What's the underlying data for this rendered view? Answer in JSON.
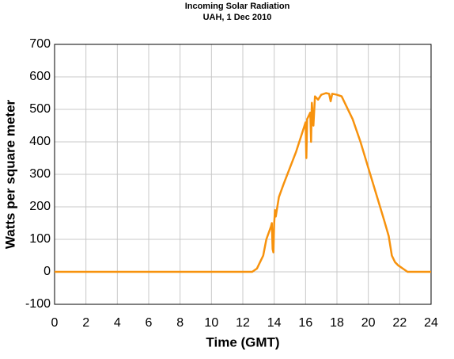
{
  "chart_data": {
    "type": "line",
    "title": "Incoming Solar Radiation",
    "subtitle": "UAH, 1 Dec 2010",
    "x_label": "Time (GMT)",
    "y_label": "Watts per square meter",
    "xlim": [
      0,
      24
    ],
    "xticks": [
      0,
      2,
      4,
      6,
      8,
      10,
      12,
      14,
      16,
      18,
      20,
      22,
      24
    ],
    "ylim": [
      -100,
      700
    ],
    "yticks": [
      -100,
      0,
      100,
      200,
      300,
      400,
      500,
      600,
      700
    ],
    "grid": true,
    "series": [
      {
        "name": "Incoming Solar Radiation",
        "color": "#f7920d",
        "x": [
          0,
          12.6,
          12.9,
          13.1,
          13.3,
          13.5,
          13.8,
          13.85,
          13.9,
          13.95,
          14.0,
          14.05,
          14.1,
          14.3,
          14.6,
          15.0,
          15.4,
          15.8,
          16.0,
          16.05,
          16.1,
          16.3,
          16.35,
          16.4,
          16.5,
          16.6,
          16.8,
          17.0,
          17.3,
          17.5,
          17.6,
          17.7,
          18.0,
          18.3,
          18.6,
          19.0,
          19.5,
          20.0,
          20.5,
          21.0,
          21.3,
          21.5,
          21.7,
          21.9,
          22.2,
          22.5,
          24
        ],
        "values": [
          0,
          0,
          10,
          30,
          50,
          100,
          140,
          150,
          70,
          60,
          150,
          190,
          170,
          230,
          270,
          320,
          370,
          430,
          460,
          350,
          470,
          490,
          400,
          520,
          450,
          540,
          530,
          545,
          550,
          548,
          525,
          548,
          545,
          540,
          510,
          470,
          400,
          320,
          240,
          160,
          110,
          50,
          30,
          20,
          10,
          0,
          0
        ]
      }
    ]
  }
}
